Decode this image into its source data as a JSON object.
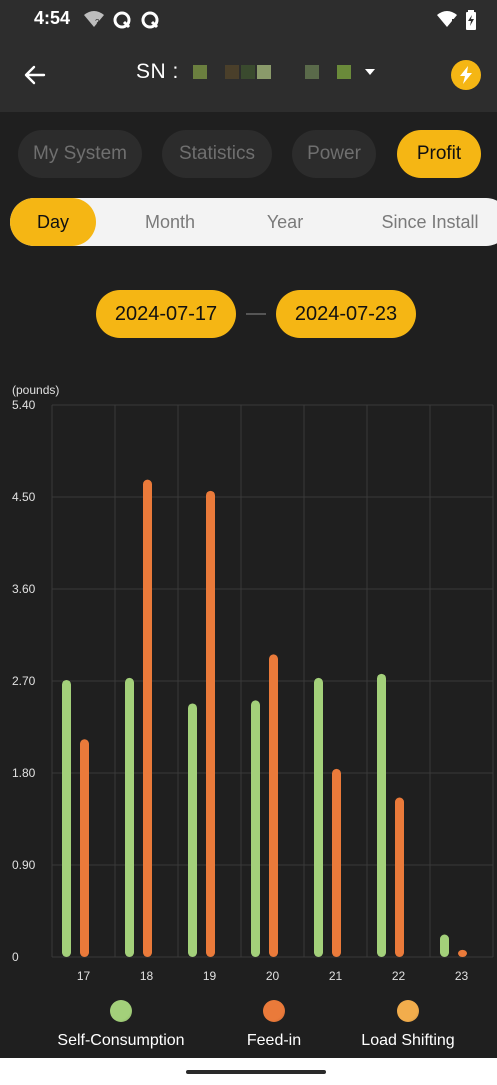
{
  "status_bar": {
    "time": "4:54"
  },
  "header": {
    "sn_label": "SN :",
    "redacted_colors": [
      "#6b7f3f",
      "#2d2d2d",
      "#4a3f2a",
      "#3a4a2e",
      "#8a9a6a",
      "#2d2d2d",
      "#2d2d2d",
      "#5a6a4a",
      "#2d2d2d",
      "#6a8a3a"
    ]
  },
  "tabs": [
    {
      "label": "My System",
      "active": false
    },
    {
      "label": "Statistics",
      "active": false
    },
    {
      "label": "Power",
      "active": false
    },
    {
      "label": "Profit",
      "active": true
    }
  ],
  "periods": [
    {
      "label": "Day",
      "active": true
    },
    {
      "label": "Month",
      "active": false
    },
    {
      "label": "Year",
      "active": false
    },
    {
      "label": "Since Install",
      "active": false
    }
  ],
  "date_range": {
    "start": "2024-07-17",
    "end": "2024-07-23"
  },
  "legend": [
    {
      "label": "Self-Consumption",
      "color": "#a3d07a"
    },
    {
      "label": "Feed-in",
      "color": "#ea7a3a"
    },
    {
      "label": "Load Shifting",
      "color": "#f2ad4c"
    }
  ],
  "chart_data": {
    "type": "bar",
    "ylabel": "(pounds)",
    "ylim": [
      0,
      5.4
    ],
    "yticks": [
      "5.40",
      "4.50",
      "3.60",
      "2.70",
      "1.80",
      "0.90",
      "0"
    ],
    "categories": [
      "17",
      "18",
      "19",
      "20",
      "21",
      "22",
      "23"
    ],
    "series": [
      {
        "name": "Self-Consumption",
        "color": "#a3d07a",
        "values": [
          2.71,
          2.73,
          2.48,
          2.51,
          2.73,
          2.77,
          0.22
        ]
      },
      {
        "name": "Feed-in",
        "color": "#ea7a3a",
        "values": [
          2.13,
          4.67,
          4.56,
          2.96,
          1.84,
          1.56,
          0.07
        ]
      },
      {
        "name": "Load Shifting",
        "color": "#f2ad4c",
        "values": [
          0,
          0,
          0,
          0,
          0,
          0,
          0
        ]
      }
    ],
    "grid": true
  }
}
